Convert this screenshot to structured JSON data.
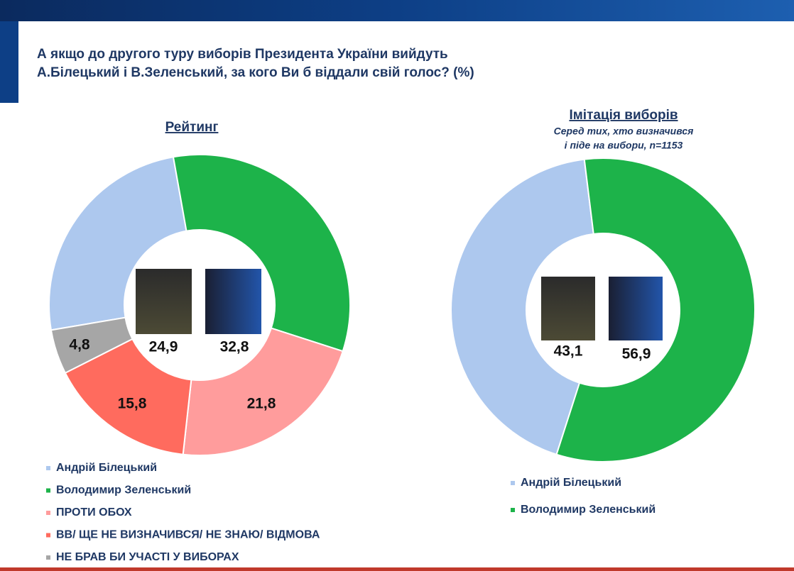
{
  "title_lines": [
    "А якщо до другого туру виборів Президента України вийдуть",
    "А.Білецький і В.Зеленський, за кого Ви б віддали свій голос? (%)"
  ],
  "chart_data": [
    {
      "type": "pie",
      "donut": true,
      "title": "Рейтинг",
      "categories": [
        "Андрій Білецький",
        "Володимир Зеленський",
        "ПРОТИ ОБОХ",
        "ВВ/ ЩЕ НЕ ВИЗНАЧИВСЯ/ НЕ ЗНАЮ/ ВІДМОВА",
        "НЕ БРАВ БИ УЧАСТІ У ВИБОРАХ"
      ],
      "values": [
        24.9,
        32.8,
        21.8,
        15.8,
        4.8
      ],
      "value_labels": [
        "24,9",
        "32,8",
        "21,8",
        "15,8",
        "4,8"
      ],
      "colors": [
        "#adc8ee",
        "#1db34a",
        "#ff9c9c",
        "#ff6b5e",
        "#a6a6a6"
      ]
    },
    {
      "type": "pie",
      "donut": true,
      "title": "Імітація виборів",
      "subtitle_lines": [
        "Серед тих, хто визначився",
        "і піде на вибори, n=1153"
      ],
      "categories": [
        "Андрій Білецький",
        "Володимир Зеленський"
      ],
      "values": [
        43.1,
        56.9
      ],
      "value_labels": [
        "43,1",
        "56,9"
      ],
      "colors": [
        "#adc8ee",
        "#1db34a"
      ]
    }
  ]
}
